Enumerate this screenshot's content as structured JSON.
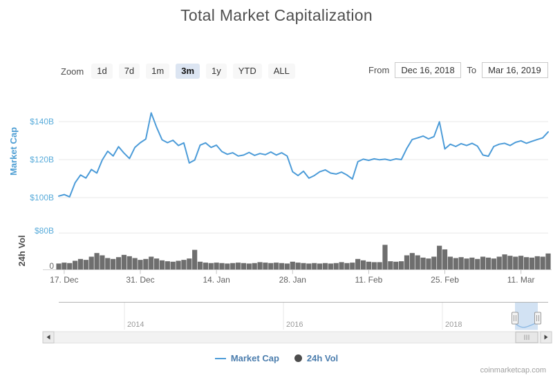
{
  "title": "Total Market Capitalization",
  "toolbar": {
    "zoom_label": "Zoom",
    "buttons": [
      {
        "label": "1d",
        "selected": false
      },
      {
        "label": "7d",
        "selected": false
      },
      {
        "label": "1m",
        "selected": false
      },
      {
        "label": "3m",
        "selected": true
      },
      {
        "label": "1y",
        "selected": false
      },
      {
        "label": "YTD",
        "selected": false
      },
      {
        "label": "ALL",
        "selected": false
      }
    ]
  },
  "range_selector": {
    "from_label": "From",
    "from_value": "Dec 16, 2018",
    "to_label": "To",
    "to_value": "Mar 16, 2019"
  },
  "chart_data": {
    "type": "line",
    "x_start_date": "Dec 16, 2018",
    "x_end_date": "Mar 16, 2019",
    "x_tick_labels": [
      "17. Dec",
      "31. Dec",
      "14. Jan",
      "28. Jan",
      "11. Feb",
      "25. Feb",
      "11. Mar"
    ],
    "x_tick_day_indices": [
      1,
      15,
      29,
      43,
      57,
      71,
      85
    ],
    "cap_axis": {
      "title": "Market Cap",
      "unit": "$B",
      "range_shown": [
        100,
        140
      ],
      "ticks": [
        {
          "label": "$140B",
          "value": 140
        },
        {
          "label": "$120B",
          "value": 120
        },
        {
          "label": "$100B",
          "value": 100
        }
      ]
    },
    "vol_axis": {
      "title": "24h Vol",
      "unit": "$B",
      "range_shown": [
        0,
        80
      ],
      "ticks": [
        {
          "label": "$80B",
          "value": 80,
          "color": "#58abda"
        },
        {
          "label": "0",
          "value": 0,
          "color": "#666666"
        }
      ]
    },
    "series": [
      {
        "name": "Market Cap",
        "type": "line",
        "color": "#4b9bd8",
        "unit": "$B",
        "values": [
          100.8,
          101.6,
          100.4,
          107.8,
          111.9,
          110.3,
          114.8,
          112.9,
          119.8,
          124.4,
          121.9,
          126.8,
          123.4,
          120.6,
          126.4,
          128.9,
          130.8,
          144.6,
          137.0,
          130.4,
          128.9,
          130.2,
          127.4,
          128.8,
          118.2,
          119.8,
          127.6,
          128.8,
          126.4,
          127.6,
          124.2,
          122.8,
          123.6,
          121.9,
          122.4,
          123.8,
          122.2,
          123.2,
          122.6,
          124.0,
          122.4,
          123.6,
          121.9,
          113.6,
          111.6,
          113.9,
          110.2,
          111.6,
          113.6,
          114.6,
          112.9,
          112.4,
          113.4,
          111.9,
          109.8,
          118.9,
          120.2,
          119.6,
          120.4,
          119.9,
          120.2,
          119.6,
          120.4,
          120.0,
          125.9,
          130.6,
          131.4,
          132.4,
          130.9,
          132.1,
          139.9,
          125.6,
          128.1,
          126.9,
          128.4,
          127.4,
          128.6,
          127.1,
          122.4,
          121.8,
          126.9,
          128.1,
          128.6,
          127.4,
          129.1,
          129.9,
          128.6,
          129.6,
          130.6,
          131.4,
          134.6
        ]
      },
      {
        "name": "24h Vol",
        "type": "column",
        "color": "#6e6e6e",
        "unit": "$B",
        "values": [
          13,
          15,
          14,
          19,
          23,
          21,
          28,
          36,
          31,
          25,
          23,
          27,
          32,
          29,
          25,
          21,
          23,
          28,
          24,
          20,
          18,
          17,
          19,
          21,
          24,
          43,
          17,
          15,
          14,
          15,
          14,
          13,
          14,
          15,
          14,
          13,
          14,
          16,
          15,
          14,
          15,
          14,
          13,
          17,
          15,
          14,
          13,
          14,
          13,
          14,
          13,
          14,
          16,
          14,
          15,
          23,
          20,
          17,
          16,
          16,
          54,
          18,
          17,
          18,
          31,
          36,
          31,
          26,
          24,
          28,
          52,
          44,
          28,
          25,
          27,
          24,
          26,
          23,
          28,
          26,
          24,
          28,
          33,
          30,
          28,
          30,
          27,
          26,
          29,
          28,
          35
        ]
      }
    ],
    "navigator": {
      "year_labels": [
        "2014",
        "2016",
        "2018"
      ],
      "selection": "Dec 16, 2018 - Mar 16, 2019"
    },
    "grid": true,
    "legend_position": "bottom-center"
  },
  "legend": [
    {
      "label": "Market Cap",
      "marker": "line",
      "color": "#4b9bd8"
    },
    {
      "label": "24h Vol",
      "marker": "circle",
      "color": "#4d4d4d"
    }
  ],
  "watermark": "coinmarketcap.com",
  "colors": {
    "line_blue": "#4b9bd8",
    "axis_label_blue": "#58abda",
    "axis_title_blue": "#4f9fd4",
    "vol_bar_gray": "#6e6e6e",
    "vol_title_gray": "#4d4d4d",
    "grid_gray": "#e7e7e7",
    "x_label_gray": "#606060",
    "selected_button_bg": "#dce5f2",
    "navigator_selection": "rgba(116,165,217,0.32)"
  }
}
